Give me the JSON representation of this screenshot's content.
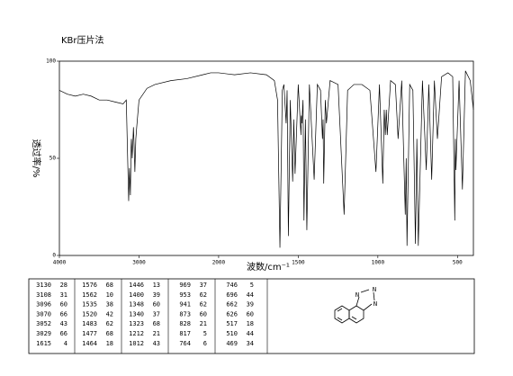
{
  "chart_data": {
    "type": "line",
    "title": "KBr压片法",
    "x_label": "波数/cm⁻¹",
    "y_label": "透过率/%",
    "xlim": [
      4000,
      400
    ],
    "x_scale_break": 2000,
    "xticks": [
      4000,
      3000,
      2000,
      1500,
      1000,
      500
    ],
    "ylim": [
      0,
      100
    ],
    "yticks": [
      0,
      50,
      100
    ],
    "series": [
      {
        "color": "#000000",
        "x": [
          4000,
          3900,
          3800,
          3700,
          3600,
          3500,
          3400,
          3300,
          3200,
          3160,
          3130,
          3120,
          3108,
          3100,
          3096,
          3085,
          3070,
          3060,
          3052,
          3040,
          3029,
          3000,
          2900,
          2800,
          2600,
          2400,
          2200,
          2100,
          2000,
          1900,
          1800,
          1700,
          1650,
          1630,
          1615,
          1600,
          1590,
          1576,
          1570,
          1562,
          1550,
          1535,
          1528,
          1520,
          1500,
          1483,
          1480,
          1477,
          1470,
          1464,
          1455,
          1446,
          1430,
          1400,
          1380,
          1360,
          1348,
          1344,
          1340,
          1330,
          1323,
          1300,
          1250,
          1212,
          1190,
          1150,
          1100,
          1050,
          1012,
          990,
          969,
          960,
          953,
          947,
          941,
          920,
          890,
          873,
          850,
          828,
          822,
          817,
          800,
          780,
          764,
          755,
          746,
          720,
          696,
          680,
          662,
          645,
          626,
          600,
          560,
          530,
          517,
          513,
          510,
          490,
          469,
          450,
          420,
          400
        ],
        "values": [
          85,
          83,
          82,
          83,
          82,
          80,
          80,
          79,
          78,
          80,
          28,
          45,
          31,
          55,
          60,
          50,
          66,
          55,
          43,
          60,
          66,
          80,
          86,
          88,
          90,
          91,
          93,
          94,
          94,
          93,
          94,
          93,
          90,
          80,
          4,
          85,
          88,
          68,
          85,
          10,
          80,
          38,
          70,
          42,
          88,
          62,
          72,
          68,
          80,
          18,
          70,
          13,
          88,
          39,
          88,
          85,
          60,
          70,
          37,
          80,
          68,
          90,
          88,
          21,
          85,
          88,
          88,
          85,
          43,
          88,
          37,
          75,
          62,
          75,
          62,
          90,
          88,
          60,
          90,
          21,
          50,
          5,
          88,
          85,
          6,
          60,
          5,
          90,
          44,
          88,
          39,
          90,
          60,
          92,
          94,
          92,
          18,
          60,
          44,
          90,
          34,
          95,
          90,
          75
        ]
      }
    ]
  },
  "peak_table": {
    "columns": [
      [
        [
          3130,
          28
        ],
        [
          3108,
          31
        ],
        [
          3096,
          60
        ],
        [
          3070,
          66
        ],
        [
          3052,
          43
        ],
        [
          3029,
          66
        ],
        [
          1615,
          4
        ]
      ],
      [
        [
          1576,
          68
        ],
        [
          1562,
          10
        ],
        [
          1535,
          38
        ],
        [
          1520,
          42
        ],
        [
          1483,
          62
        ],
        [
          1477,
          68
        ],
        [
          1464,
          18
        ]
      ],
      [
        [
          1446,
          13
        ],
        [
          1400,
          39
        ],
        [
          1348,
          60
        ],
        [
          1340,
          37
        ],
        [
          1323,
          68
        ],
        [
          1212,
          21
        ],
        [
          1012,
          43
        ]
      ],
      [
        [
          969,
          37
        ],
        [
          953,
          62
        ],
        [
          941,
          62
        ],
        [
          873,
          60
        ],
        [
          828,
          21
        ],
        [
          817,
          5
        ],
        [
          764,
          6
        ]
      ],
      [
        [
          746,
          5
        ],
        [
          696,
          44
        ],
        [
          662,
          39
        ],
        [
          626,
          60
        ],
        [
          517,
          18
        ],
        [
          510,
          44
        ],
        [
          469,
          34
        ]
      ]
    ]
  },
  "structure": {
    "atoms": [
      "N",
      "N",
      "N"
    ]
  }
}
